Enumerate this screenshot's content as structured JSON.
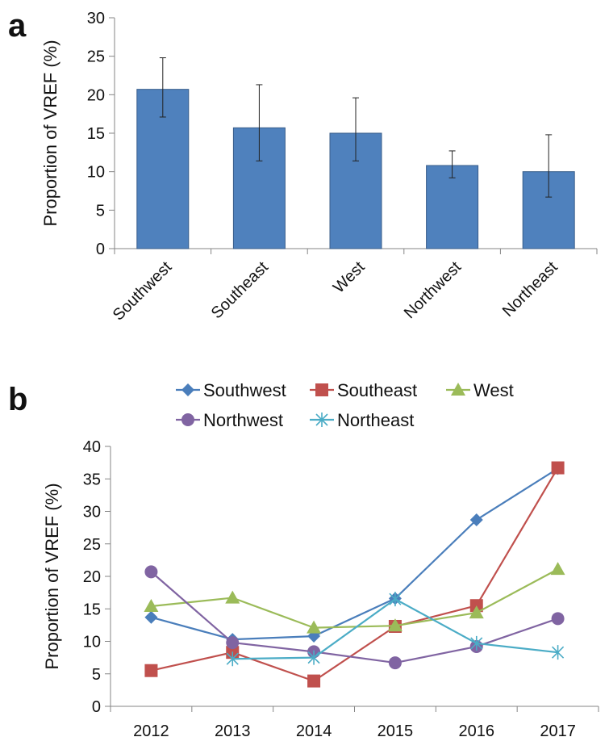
{
  "panels": {
    "a": {
      "label": "a"
    },
    "b": {
      "label": "b"
    }
  },
  "chart_data": [
    {
      "type": "bar",
      "panel": "a",
      "title": "",
      "xlabel": "",
      "ylabel": "Proportion of VREF (%)",
      "ylim": [
        0,
        30
      ],
      "yticks": [
        0,
        5,
        10,
        15,
        20,
        25,
        30
      ],
      "categories": [
        "Southwest",
        "Southeast",
        "West",
        "Northwest",
        "Northeast"
      ],
      "values": [
        20.7,
        15.7,
        15.0,
        10.8,
        10.0
      ],
      "error_low": [
        17.1,
        11.4,
        11.4,
        9.2,
        6.7
      ],
      "error_high": [
        24.8,
        21.3,
        19.6,
        12.7,
        14.8
      ],
      "bar_color": "#4f81bd",
      "grid": false,
      "legend": "none"
    },
    {
      "type": "line",
      "panel": "b",
      "title": "",
      "xlabel": "",
      "ylabel": "Proportion of VREF (%)",
      "ylim": [
        0,
        40
      ],
      "yticks": [
        0,
        5,
        10,
        15,
        20,
        25,
        30,
        35,
        40
      ],
      "x": [
        "2012",
        "2013",
        "2014",
        "2015",
        "2016",
        "2017"
      ],
      "grid": false,
      "legend": "top",
      "series": [
        {
          "name": "Southwest",
          "marker": "diamond",
          "color": "#4a7ebb",
          "values": [
            13.7,
            10.3,
            10.8,
            16.6,
            28.7,
            36.6
          ]
        },
        {
          "name": "Southeast",
          "marker": "square",
          "color": "#c0504d",
          "values": [
            5.5,
            8.3,
            3.9,
            12.3,
            15.5,
            36.7
          ]
        },
        {
          "name": "West",
          "marker": "triangle",
          "color": "#9bbb59",
          "values": [
            15.4,
            16.7,
            12.1,
            12.4,
            14.4,
            21.1
          ]
        },
        {
          "name": "Northwest",
          "marker": "circle",
          "color": "#8064a2",
          "values": [
            20.7,
            9.8,
            8.4,
            6.7,
            9.2,
            13.5
          ]
        },
        {
          "name": "Northeast",
          "marker": "star",
          "color": "#4bacc6",
          "values": [
            null,
            7.3,
            7.5,
            16.5,
            9.7,
            8.3
          ]
        }
      ]
    }
  ]
}
